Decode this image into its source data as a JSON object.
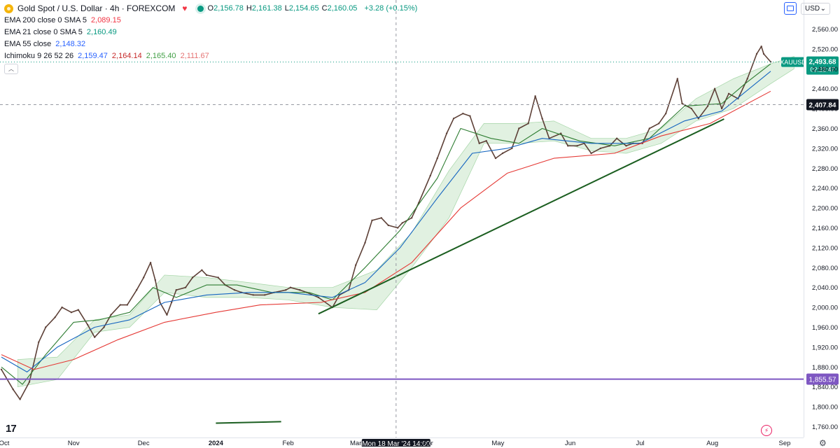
{
  "header": {
    "title": "Gold Spot / U.S. Dollar · 4h · FOREXCOM",
    "ohlc": [
      {
        "k": "O",
        "v": "2,156.78"
      },
      {
        "k": "H",
        "v": "2,161.38"
      },
      {
        "k": "L",
        "v": "2,154.65"
      },
      {
        "k": "C",
        "v": "2,160.05"
      }
    ],
    "change": "+3.28 (+0.15%)",
    "currency_button": "USD",
    "currency_caret": "⌄"
  },
  "indicators": [
    {
      "label": "EMA 200 close 0 SMA 5",
      "values": [
        "2,089.15"
      ],
      "colors": [
        "#f23645"
      ]
    },
    {
      "label": "EMA 21 close 0 SMA 5",
      "values": [
        "2,160.49"
      ],
      "colors": [
        "#089981"
      ]
    },
    {
      "label": "EMA 55 close",
      "values": [
        "2,148.32"
      ],
      "colors": [
        "#2962ff"
      ]
    },
    {
      "label": "Ichimoku 9 26 52 26",
      "values": [
        "2,159.47",
        "2,164.14",
        "2,165.40",
        "2,111.67"
      ],
      "colors": [
        "#2962ff",
        "#c62828",
        "#43a047",
        "#e57373"
      ]
    }
  ],
  "icons": [
    "heart-icon",
    "live-status-icon",
    "collapse-chevron-icon",
    "fullscreen-icon",
    "tradingview-logo-icon",
    "lightning-icon",
    "settings-gear-icon"
  ],
  "chart_data": {
    "type": "line",
    "title": "Gold Spot / U.S. Dollar · 4h · FOREXCOM",
    "symbol": "XAUUSD",
    "timeframe": "4h",
    "y_ticks": [
      1760,
      1800,
      1840,
      1880,
      1920,
      1960,
      2000,
      2040,
      2080,
      2120,
      2160,
      2200,
      2240,
      2280,
      2320,
      2360,
      2400,
      2440,
      2480,
      2520,
      2560
    ],
    "y_tick_labels": [
      "1,760.00",
      "1,800.00",
      "1,840.00",
      "1,880.00",
      "1,920.00",
      "1,960.00",
      "2,000.00",
      "2,040.00",
      "2,080.00",
      "2,120.00",
      "2,160.00",
      "2,200.00",
      "2,240.00",
      "2,280.00",
      "2,320.00",
      "2,360.00",
      "2,400.00",
      "2,440.00",
      "2,480.00",
      "2,520.00",
      "2,560.00"
    ],
    "ylim": [
      1740,
      2580
    ],
    "x_ticks": [
      {
        "date": "2023-10-01",
        "label": "Oct"
      },
      {
        "date": "2023-11-01",
        "label": "Nov"
      },
      {
        "date": "2023-12-01",
        "label": "Dec"
      },
      {
        "date": "2024-01-01",
        "label": "2024"
      },
      {
        "date": "2024-02-01",
        "label": "Feb"
      },
      {
        "date": "2024-03-01",
        "label": "Mar"
      },
      {
        "date": "2024-04-01",
        "label": "Apr"
      },
      {
        "date": "2024-05-01",
        "label": "May"
      },
      {
        "date": "2024-06-01",
        "label": "Jun"
      },
      {
        "date": "2024-07-01",
        "label": "Jul"
      },
      {
        "date": "2024-08-01",
        "label": "Aug"
      },
      {
        "date": "2024-09-01",
        "label": "Sep"
      }
    ],
    "xlim": [
      "2023-10-01",
      "2024-09-10"
    ],
    "series": [
      {
        "name": "XAUUSD",
        "color": "#5d4037",
        "x": [
          "2023-10-01",
          "2023-10-06",
          "2023-10-09",
          "2023-10-13",
          "2023-10-17",
          "2023-10-20",
          "2023-10-24",
          "2023-10-27",
          "2023-10-31",
          "2023-11-03",
          "2023-11-07",
          "2023-11-10",
          "2023-11-14",
          "2023-11-17",
          "2023-11-21",
          "2023-11-24",
          "2023-11-28",
          "2023-12-01",
          "2023-12-04",
          "2023-12-06",
          "2023-12-08",
          "2023-12-11",
          "2023-12-13",
          "2023-12-15",
          "2023-12-19",
          "2023-12-22",
          "2023-12-26",
          "2023-12-28",
          "2024-01-02",
          "2024-01-05",
          "2024-01-09",
          "2024-01-12",
          "2024-01-17",
          "2024-01-22",
          "2024-01-26",
          "2024-01-31",
          "2024-02-02",
          "2024-02-06",
          "2024-02-09",
          "2024-02-14",
          "2024-02-20",
          "2024-02-23",
          "2024-02-27",
          "2024-03-01",
          "2024-03-05",
          "2024-03-08",
          "2024-03-12",
          "2024-03-15",
          "2024-03-19",
          "2024-03-21",
          "2024-03-25",
          "2024-03-28",
          "2024-04-02",
          "2024-04-05",
          "2024-04-09",
          "2024-04-12",
          "2024-04-16",
          "2024-04-19",
          "2024-04-23",
          "2024-04-26",
          "2024-04-30",
          "2024-05-03",
          "2024-05-07",
          "2024-05-10",
          "2024-05-14",
          "2024-05-17",
          "2024-05-20",
          "2024-05-23",
          "2024-05-28",
          "2024-05-31",
          "2024-06-04",
          "2024-06-07",
          "2024-06-10",
          "2024-06-14",
          "2024-06-18",
          "2024-06-21",
          "2024-06-25",
          "2024-06-28",
          "2024-07-02",
          "2024-07-05",
          "2024-07-09",
          "2024-07-12",
          "2024-07-17",
          "2024-07-19",
          "2024-07-23",
          "2024-07-26",
          "2024-07-30",
          "2024-08-02",
          "2024-08-05",
          "2024-08-08",
          "2024-08-12",
          "2024-08-16",
          "2024-08-20",
          "2024-08-22",
          "2024-08-23",
          "2024-08-26"
        ],
        "values": [
          1875,
          1835,
          1815,
          1850,
          1930,
          1960,
          1980,
          2000,
          1990,
          1995,
          1965,
          1940,
          1960,
          1985,
          2005,
          2005,
          2035,
          2060,
          2090,
          2055,
          2010,
          1985,
          2010,
          2035,
          2040,
          2060,
          2075,
          2065,
          2060,
          2045,
          2035,
          2030,
          2025,
          2025,
          2030,
          2035,
          2040,
          2035,
          2030,
          2020,
          2000,
          2025,
          2035,
          2085,
          2130,
          2175,
          2180,
          2165,
          2160,
          2170,
          2180,
          2210,
          2265,
          2300,
          2350,
          2380,
          2390,
          2385,
          2330,
          2335,
          2300,
          2310,
          2320,
          2360,
          2370,
          2425,
          2380,
          2340,
          2350,
          2325,
          2325,
          2330,
          2310,
          2320,
          2325,
          2340,
          2325,
          2330,
          2330,
          2360,
          2370,
          2390,
          2460,
          2410,
          2400,
          2380,
          2405,
          2440,
          2400,
          2430,
          2420,
          2460,
          2510,
          2525,
          2510,
          2494
        ]
      },
      {
        "name": "EMA 21",
        "color": "#2e7d32",
        "x": [
          "2023-10-01",
          "2023-10-10",
          "2023-10-20",
          "2023-11-01",
          "2023-11-12",
          "2023-11-25",
          "2023-12-05",
          "2023-12-15",
          "2023-12-28",
          "2024-01-10",
          "2024-01-25",
          "2024-02-10",
          "2024-02-20",
          "2024-03-05",
          "2024-03-20",
          "2024-04-05",
          "2024-04-15",
          "2024-04-28",
          "2024-05-10",
          "2024-05-20",
          "2024-06-05",
          "2024-06-20",
          "2024-07-05",
          "2024-07-20",
          "2024-08-05",
          "2024-08-15",
          "2024-08-26"
        ],
        "values": [
          1880,
          1845,
          1905,
          1970,
          1975,
          1990,
          2040,
          2020,
          2045,
          2045,
          2030,
          2030,
          2015,
          2080,
          2155,
          2260,
          2360,
          2340,
          2330,
          2360,
          2335,
          2325,
          2340,
          2405,
          2410,
          2450,
          2490
        ]
      },
      {
        "name": "EMA 55",
        "color": "#1565c0",
        "x": [
          "2023-10-01",
          "2023-10-12",
          "2023-10-25",
          "2023-11-10",
          "2023-11-25",
          "2023-12-10",
          "2023-12-28",
          "2024-01-15",
          "2024-02-01",
          "2024-02-20",
          "2024-03-05",
          "2024-03-20",
          "2024-04-05",
          "2024-04-20",
          "2024-05-05",
          "2024-05-20",
          "2024-06-10",
          "2024-07-01",
          "2024-07-20",
          "2024-08-05",
          "2024-08-26"
        ],
        "values": [
          1900,
          1870,
          1920,
          1960,
          1975,
          2010,
          2025,
          2030,
          2030,
          2020,
          2050,
          2120,
          2220,
          2310,
          2320,
          2340,
          2330,
          2330,
          2375,
          2395,
          2475
        ]
      },
      {
        "name": "EMA 200",
        "color": "#e53935",
        "x": [
          "2023-10-01",
          "2023-10-15",
          "2023-11-01",
          "2023-11-20",
          "2023-12-10",
          "2024-01-01",
          "2024-01-20",
          "2024-02-15",
          "2024-03-05",
          "2024-03-25",
          "2024-04-15",
          "2024-05-05",
          "2024-05-25",
          "2024-06-20",
          "2024-07-10",
          "2024-07-31",
          "2024-08-26"
        ],
        "values": [
          1905,
          1875,
          1895,
          1935,
          1970,
          1990,
          2005,
          2010,
          2030,
          2090,
          2200,
          2270,
          2300,
          2310,
          2345,
          2370,
          2435
        ]
      }
    ],
    "cloud": {
      "x": [
        "2023-10-08",
        "2023-10-25",
        "2023-11-10",
        "2023-11-25",
        "2023-12-10",
        "2023-12-28",
        "2024-01-15",
        "2024-02-01",
        "2024-02-20",
        "2024-03-10",
        "2024-03-25",
        "2024-04-10",
        "2024-04-25",
        "2024-05-10",
        "2024-05-25",
        "2024-06-10",
        "2024-06-25",
        "2024-07-10",
        "2024-07-25",
        "2024-08-10",
        "2024-08-26",
        "2024-09-05"
      ],
      "upper": [
        1895,
        1900,
        1975,
        1985,
        2065,
        2060,
        2050,
        2040,
        2040,
        2075,
        2150,
        2275,
        2370,
        2370,
        2375,
        2340,
        2340,
        2360,
        2420,
        2460,
        2490,
        2505
      ],
      "lower": [
        1840,
        1855,
        1950,
        1960,
        2030,
        2020,
        2020,
        2015,
        2000,
        1995,
        2080,
        2180,
        2330,
        2330,
        2335,
        2315,
        2310,
        2330,
        2375,
        2400,
        2450,
        2480
      ],
      "fill_color": "#c8e6c9"
    },
    "annotations": [
      {
        "type": "trendline",
        "x": [
          "2024-02-14",
          "2024-08-06"
        ],
        "y": [
          1987,
          2379
        ],
        "color": "#1b5e20"
      },
      {
        "type": "trendline",
        "x": [
          "2024-01-01",
          "2024-01-29"
        ],
        "y": [
          1767,
          1770
        ],
        "color": "#1b5e20"
      },
      {
        "type": "horizontal_line",
        "y": 1855.57,
        "label": "1,855.57",
        "color": "#7e57c2"
      },
      {
        "type": "crosshair_price",
        "y": 2407.84,
        "label": "2,407.84",
        "color": "#131722"
      },
      {
        "type": "crosshair_time",
        "x": "2024-03-18",
        "label": "Mon 18 Mar '24   14:00",
        "color": "#131722"
      },
      {
        "type": "last_price",
        "y": 2493.68,
        "symbol_label": "XAUUSD",
        "price_label": "2,493.68",
        "countdown": "02:22:47",
        "color": "#089981"
      }
    ],
    "grid": false,
    "legend": "top-left"
  }
}
